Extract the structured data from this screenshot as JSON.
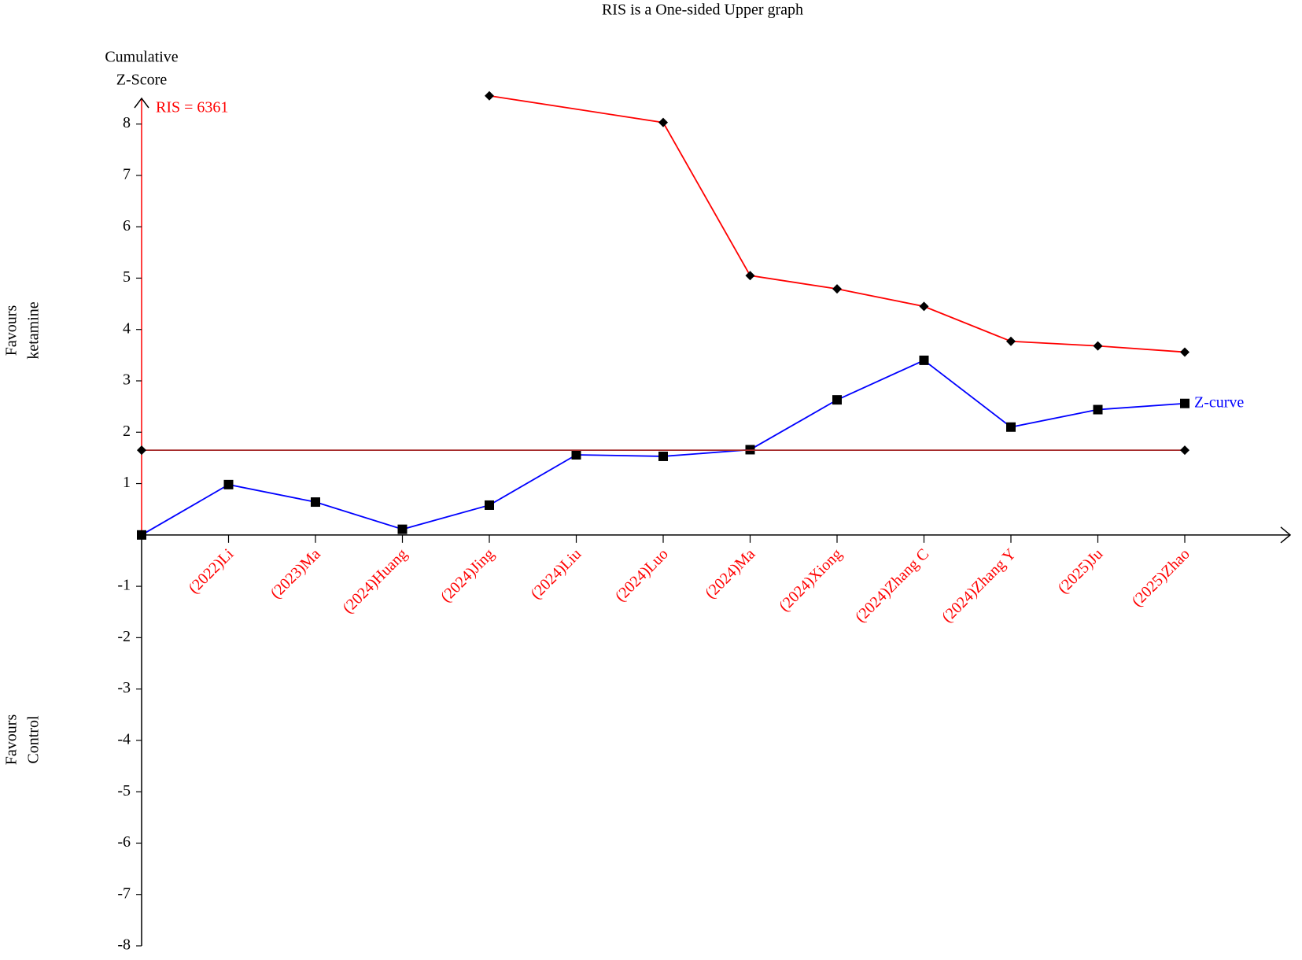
{
  "chart_data": {
    "type": "line",
    "title": "RIS is a One-sided Upper graph",
    "y_label_lines": [
      "Cumulative",
      "Z-Score"
    ],
    "side_labels": [
      [
        "Favours",
        "ketamine"
      ],
      [
        "Favours",
        "Control"
      ]
    ],
    "annotation": "RIS = 6361",
    "categories": [
      null,
      "(2022)Li",
      "(2023)Ma",
      "(2024)Huang",
      "(2024)Jing",
      "(2024)Liu",
      "(2024)Luo",
      "(2024)Ma",
      "(2024)Xiong",
      "(2024)Zhang C",
      "(2024)Zhang Y",
      "(2025)Ju",
      "(2025)Zhao"
    ],
    "category_color": "#ff0000",
    "ylim": [
      -8,
      8.5
    ],
    "yticks": [
      -8,
      -7,
      -6,
      -5,
      -4,
      -3,
      -2,
      -1,
      1,
      2,
      3,
      4,
      5,
      6,
      7,
      8
    ],
    "series": [
      {
        "name": "Z-curve",
        "color": "#0000ff",
        "marker": "square",
        "values": [
          0,
          0.98,
          0.64,
          0.11,
          0.58,
          1.56,
          1.53,
          1.66,
          2.63,
          3.4,
          2.1,
          2.44,
          2.56
        ]
      },
      {
        "color": "#ff0000",
        "marker": "diamond",
        "x": [
          4,
          6,
          7,
          8,
          9,
          10,
          11,
          12
        ],
        "values": [
          8.55,
          8.03,
          5.05,
          4.79,
          4.45,
          3.77,
          3.68,
          3.56
        ]
      },
      {
        "color": "#a52a2a",
        "marker": "diamond",
        "x": [
          0,
          12
        ],
        "values": [
          1.65,
          1.65
        ]
      }
    ]
  }
}
